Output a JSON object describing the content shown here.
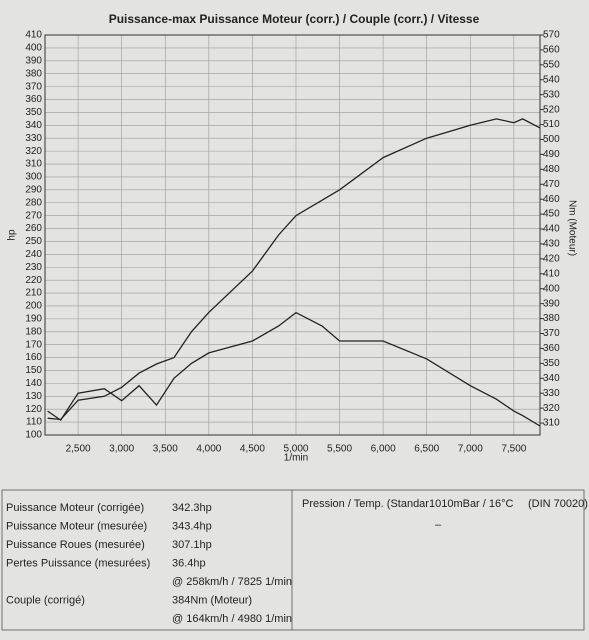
{
  "chart_data": {
    "type": "line",
    "title": "Puissance-max Puissance Moteur (corr.) / Couple (corr.) / Vitesse",
    "xlabel": "1/min",
    "ylabel": "hp",
    "y2label": "Nm (Moteur)",
    "x": [
      2150,
      2300,
      2500,
      2800,
      3000,
      3200,
      3400,
      3600,
      3800,
      4000,
      4500,
      4800,
      5000,
      5300,
      5500,
      6000,
      6500,
      7000,
      7300,
      7500,
      7600,
      7800
    ],
    "series": [
      {
        "color": "#222",
        "axis": "y",
        "values": [
          113,
          112,
          127,
          130,
          137,
          148,
          155,
          160,
          180,
          195,
          227,
          255,
          270,
          282,
          290,
          315,
          330,
          340,
          345,
          342,
          345,
          338
        ]
      },
      {
        "color": "#222",
        "axis": "y2",
        "values": [
          318,
          312,
          330,
          333,
          325,
          335,
          322,
          340,
          350,
          357,
          365,
          375,
          384,
          375,
          365,
          365,
          353,
          335,
          326,
          318,
          315,
          308
        ]
      }
    ],
    "xlim": [
      2120,
      7800
    ],
    "xticks": [
      {
        "value": 2500,
        "label": "2,500"
      },
      {
        "value": 3000,
        "label": "3,000"
      },
      {
        "value": 3500,
        "label": "3,500"
      },
      {
        "value": 4000,
        "label": "4,000"
      },
      {
        "value": 4500,
        "label": "4,500"
      },
      {
        "value": 5000,
        "label": "5,000"
      },
      {
        "value": 5500,
        "label": "5,500"
      },
      {
        "value": 6000,
        "label": "6,000"
      },
      {
        "value": 6500,
        "label": "6,500"
      },
      {
        "value": 7000,
        "label": "7,000"
      },
      {
        "value": 7500,
        "label": "7,500"
      }
    ],
    "ylim": [
      100,
      410
    ],
    "yticks": [
      100,
      110,
      120,
      130,
      140,
      150,
      160,
      170,
      180,
      190,
      200,
      210,
      220,
      230,
      240,
      250,
      260,
      270,
      280,
      290,
      300,
      310,
      320,
      330,
      340,
      350,
      360,
      370,
      380,
      390,
      400,
      410
    ],
    "y2lim": [
      302,
      570
    ],
    "y2ticks": [
      310,
      320,
      330,
      340,
      350,
      360,
      370,
      380,
      390,
      400,
      410,
      420,
      430,
      440,
      450,
      460,
      470,
      480,
      490,
      500,
      510,
      520,
      530,
      540,
      550,
      560,
      570
    ],
    "grid": true
  },
  "table": {
    "rows": [
      {
        "label": "Puissance Moteur (corrigée)",
        "value": "342.3hp"
      },
      {
        "label": "Puissance Moteur (mesurée)",
        "value": "343.4hp"
      },
      {
        "label": "Puissance Roues (mesurée)",
        "value": "307.1hp"
      },
      {
        "label": "Pertes Puissance (mesurées)",
        "value": "36.4hp"
      },
      {
        "value": "@ 258km/h / 7825 1/min"
      },
      {
        "label": "Couple (corrigé)",
        "value": "384Nm (Moteur)"
      },
      {
        "value": "@ 164km/h / 4980 1/min"
      }
    ],
    "conditions": "Pression / Temp. (Standar1010mBar / 16°C",
    "norm": "(DIN 70020)",
    "mark": "–"
  }
}
